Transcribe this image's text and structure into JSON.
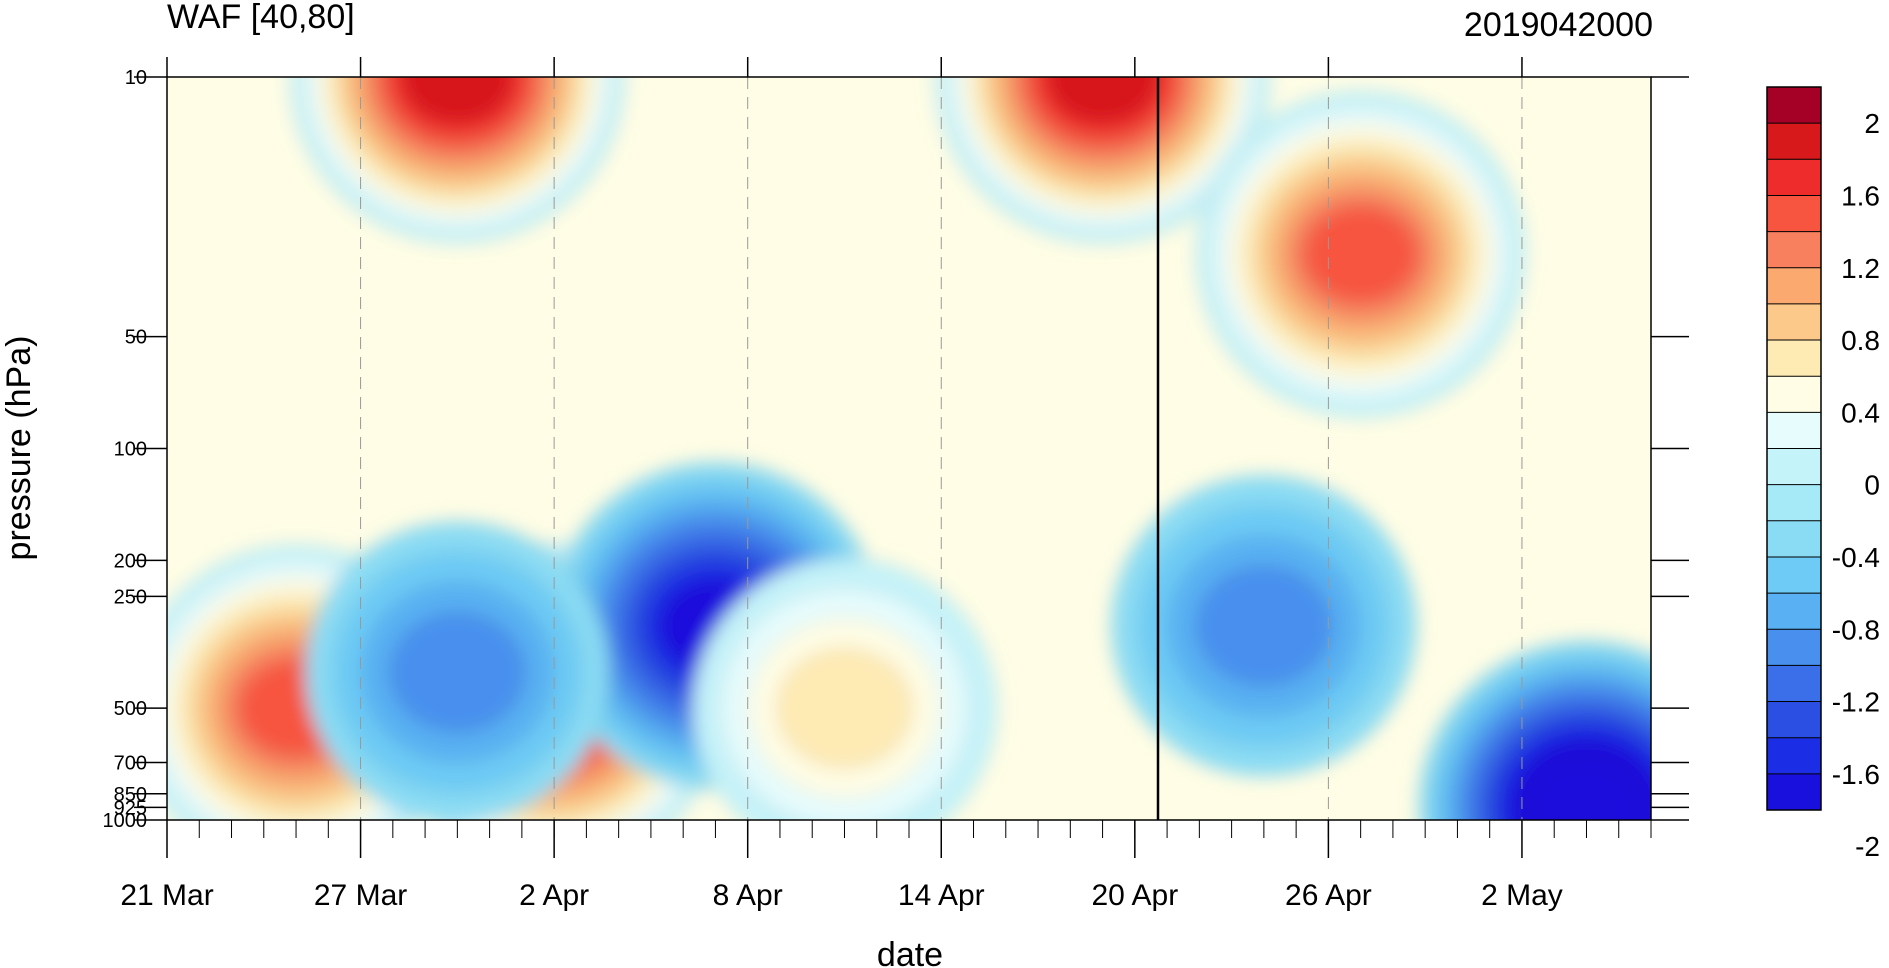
{
  "chart_data": {
    "type": "heatmap",
    "title_left": "WAF [40,80]",
    "title_right": "2019042000",
    "xlabel": "date",
    "ylabel": "pressure (hPa)",
    "x_ticks": [
      "21 Mar",
      "27 Mar",
      "2 Apr",
      "8 Apr",
      "14 Apr",
      "20 Apr",
      "26 Apr",
      "2 May"
    ],
    "x_dates": [
      "2019-03-21",
      "2019-03-27",
      "2019-04-02",
      "2019-04-08",
      "2019-04-14",
      "2019-04-20",
      "2019-04-26",
      "2019-05-02"
    ],
    "x_range": [
      "2019-03-21",
      "2019-05-06"
    ],
    "y_scale": "log",
    "y_range": [
      1000,
      10
    ],
    "y_ticks": [
      10,
      50,
      100,
      200,
      250,
      500,
      700,
      850,
      925,
      1000
    ],
    "reference_date": "2019-04-20",
    "colorbar": {
      "labels": [
        "2",
        "1.6",
        "1.2",
        "0.8",
        "0.4",
        "0",
        "-0.4",
        "-0.8",
        "-1.2",
        "-1.6",
        "-2"
      ],
      "colors": [
        "#a50026",
        "#d7191c",
        "#ee2c2c",
        "#f7553f",
        "#f8805f",
        "#fba96f",
        "#fdc98a",
        "#feeab3",
        "#fffde5",
        "#e6fcfd",
        "#c4f3f9",
        "#a6eaf7",
        "#8adcf4",
        "#6dcbf5",
        "#59b1f3",
        "#4990ee",
        "#3a6fe9",
        "#2a4fe2",
        "#1c2de6",
        "#1a10dd"
      ]
    },
    "grid": "dashed verticals at x ticks",
    "features": [
      {
        "pressure": 10,
        "date": "2019-04-19",
        "value": 2.0
      },
      {
        "pressure": 10,
        "date": "2019-03-30",
        "value": 2.0
      },
      {
        "pressure": 500,
        "date": "2019-03-25",
        "value": 1.6
      },
      {
        "pressure": 500,
        "date": "2019-04-02",
        "value": 1.8
      },
      {
        "pressure": 300,
        "date": "2019-04-07",
        "value": -1.6
      },
      {
        "pressure": 925,
        "date": "2019-05-04",
        "value": -2.0
      },
      {
        "pressure": 30,
        "date": "2019-04-27",
        "value": 1.6
      },
      {
        "pressure": 400,
        "date": "2019-03-30",
        "value": -0.8
      },
      {
        "pressure": 300,
        "date": "2019-04-24",
        "value": -0.8
      },
      {
        "pressure": 500,
        "date": "2019-04-11",
        "value": 0.8
      }
    ]
  }
}
